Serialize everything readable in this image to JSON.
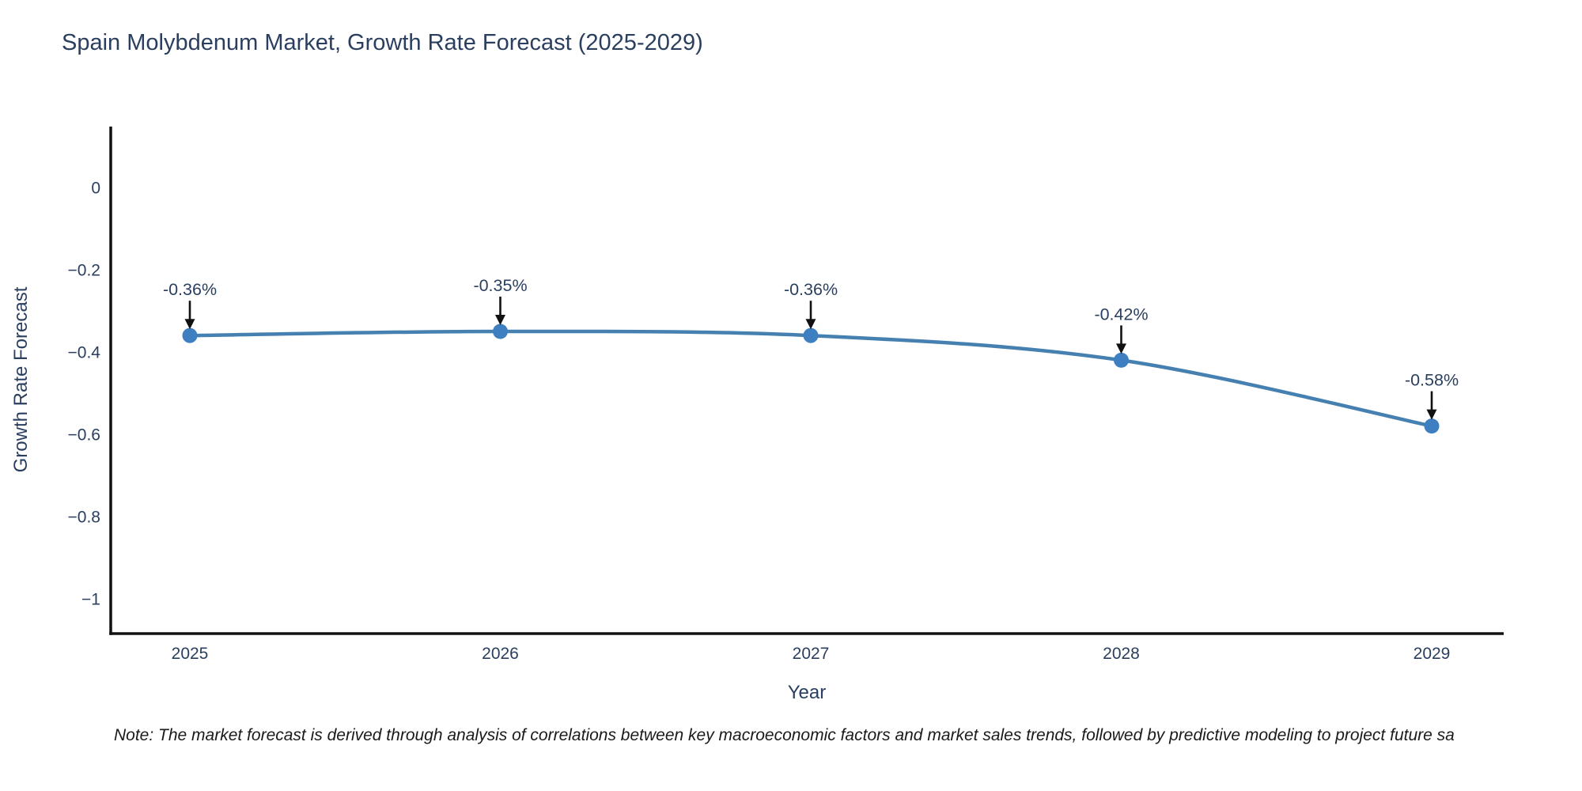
{
  "title": "Spain Molybdenum Market, Growth Rate Forecast (2025-2029)",
  "note": "Note: The market forecast is derived through analysis of correlations between key macroeconomic factors and market sales trends, followed by predictive modeling to project future sa",
  "chart_data": {
    "type": "line",
    "title": "Spain Molybdenum Market, Growth Rate Forecast (2025-2029)",
    "xlabel": "Year",
    "ylabel": "Growth Rate Forecast",
    "x": [
      2025,
      2026,
      2027,
      2028,
      2029
    ],
    "categories": [
      "2025",
      "2026",
      "2027",
      "2028",
      "2029"
    ],
    "values": [
      -0.36,
      -0.35,
      -0.36,
      -0.42,
      -0.58
    ],
    "point_labels": [
      "-0.36%",
      "-0.35%",
      "-0.36%",
      "-0.42%",
      "-0.58%"
    ],
    "yticks": [
      0,
      -0.2,
      -0.4,
      -0.6,
      -0.8,
      -1
    ],
    "ytick_labels": [
      "0",
      "−0.2",
      "−0.4",
      "−0.6",
      "−0.8",
      "−1"
    ],
    "ylim": [
      0.15,
      -1.08
    ],
    "grid": false,
    "legend": "none",
    "marker_style": "circle",
    "annotation_arrow": "down",
    "colors": {
      "line": "#4680b0",
      "marker": "#3e7fc1",
      "axis_line": "#111111",
      "text": "#2a3f5f",
      "annotation_text": "#2a3f5f",
      "arrow": "#111111",
      "note_text": "#1a1a1a",
      "background": "#ffffff"
    }
  }
}
